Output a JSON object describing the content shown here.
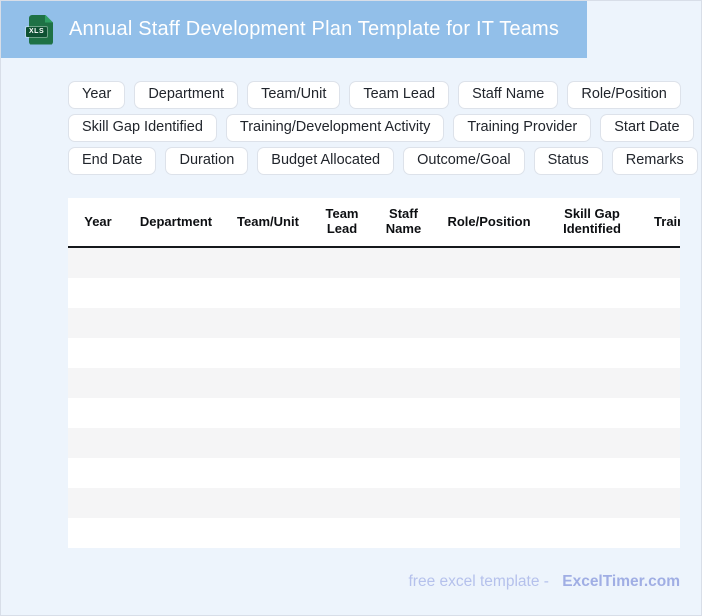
{
  "header": {
    "title": "Annual Staff Development Plan Template for IT Teams",
    "icon_label": "XLS"
  },
  "chips": {
    "rows": [
      [
        "Year",
        "Department",
        "Team/Unit",
        "Team Lead",
        "Staff Name",
        "Role/Position"
      ],
      [
        "Skill Gap Identified",
        "Training/Development Activity",
        "Training Provider",
        "Start Date"
      ],
      [
        "End Date",
        "Duration",
        "Budget Allocated",
        "Outcome/Goal",
        "Status",
        "Remarks"
      ]
    ]
  },
  "table": {
    "columns": [
      "Year",
      "Department",
      "Team/Unit",
      "Team Lead",
      "Staff Name",
      "Role/Position",
      "Skill Gap Identified",
      "Training/Development Activity"
    ],
    "row_count": 10
  },
  "footer": {
    "tagline": "free excel template -",
    "brand": "ExcelTimer.com"
  },
  "colors": {
    "band": "#92bfe9",
    "page_bg": "#edf4fc",
    "stripe": "#f5f5f6",
    "header_border": "#15181c",
    "icon_green": "#1e7145",
    "icon_band": "#0e5132",
    "footer_text": "#b5c1ec",
    "footer_brand": "#a0aee4"
  }
}
